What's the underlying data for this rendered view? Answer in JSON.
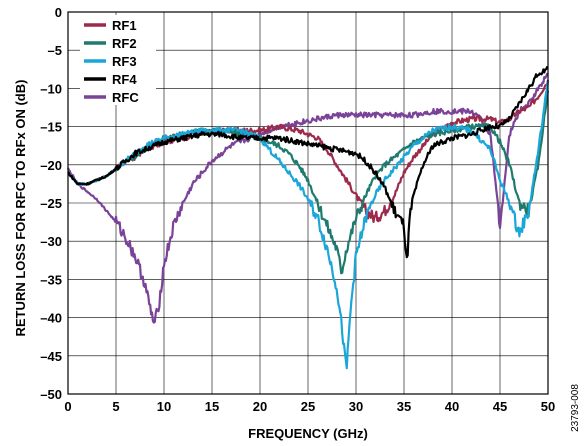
{
  "figure_code": "23793-008",
  "chart_data": {
    "type": "line",
    "xlabel": "FREQUENCY (GHz)",
    "ylabel": "RETURN LOSS FOR RFC TO RFx ON (dB)",
    "xlim": [
      0,
      50
    ],
    "ylim": [
      -50,
      0
    ],
    "xticks": [
      0,
      5,
      10,
      15,
      20,
      25,
      30,
      35,
      40,
      45,
      50
    ],
    "yticks": [
      0,
      -5,
      -10,
      -15,
      -20,
      -25,
      -30,
      -35,
      -40,
      -45,
      -50
    ],
    "tick_labels_x": [
      "0",
      "5",
      "10",
      "15",
      "20",
      "25",
      "30",
      "35",
      "40",
      "45",
      "50"
    ],
    "tick_labels_y": [
      "0",
      "–5",
      "–10",
      "–15",
      "–20",
      "–25",
      "–30",
      "–35",
      "–40",
      "–45",
      "–50"
    ],
    "grid": true,
    "legend_position": "top-left",
    "series": [
      {
        "name": "RF1",
        "color": "#9c2a4b",
        "x": [
          0,
          1,
          2,
          3,
          4,
          5,
          6,
          7,
          8,
          10,
          12,
          14,
          16,
          18,
          20,
          22,
          24,
          26,
          27,
          28,
          29,
          30,
          31,
          32,
          33,
          34,
          35,
          36,
          38,
          40,
          42,
          44,
          45,
          46,
          47,
          48,
          49,
          50
        ],
        "y": [
          -21,
          -22.5,
          -22.5,
          -22,
          -21.5,
          -20.5,
          -19.5,
          -19,
          -18,
          -17,
          -16.5,
          -16,
          -15.5,
          -15.5,
          -15.5,
          -15,
          -15.5,
          -16.5,
          -18,
          -20,
          -22,
          -24,
          -26,
          -27,
          -26,
          -24,
          -21,
          -19,
          -16,
          -14.5,
          -14,
          -14,
          -14.5,
          -14,
          -13,
          -12.5,
          -11,
          -9
        ]
      },
      {
        "name": "RF2",
        "color": "#1f7a6e",
        "x": [
          0,
          1,
          2,
          3,
          4,
          5,
          6,
          7,
          8,
          10,
          12,
          14,
          16,
          18,
          20,
          22,
          23,
          24,
          25,
          26,
          27,
          28,
          28.5,
          29,
          30,
          31,
          32,
          33,
          34,
          35,
          36,
          38,
          40,
          42,
          44,
          45,
          46,
          47,
          48,
          49,
          50
        ],
        "y": [
          -21,
          -22.5,
          -22.5,
          -22,
          -21.5,
          -20.5,
          -19.5,
          -19,
          -18,
          -16.5,
          -16,
          -15.5,
          -15.5,
          -16,
          -16.5,
          -17.5,
          -18.5,
          -20,
          -22,
          -25,
          -28,
          -31,
          -34,
          -31,
          -27,
          -24,
          -21.5,
          -20,
          -19,
          -18,
          -17,
          -16,
          -15.5,
          -15,
          -15,
          -17,
          -20,
          -25,
          -26,
          -20,
          -10
        ]
      },
      {
        "name": "RF3",
        "color": "#1ba6d9",
        "x": [
          0,
          1,
          2,
          3,
          4,
          5,
          6,
          7,
          8,
          10,
          12,
          14,
          16,
          18,
          20,
          21,
          22,
          23,
          24,
          25,
          26,
          27,
          28,
          28.5,
          29,
          29.5,
          30,
          31,
          32,
          33,
          34,
          35,
          36,
          37,
          38,
          40,
          42,
          44,
          45,
          46,
          47,
          48,
          49,
          50
        ],
        "y": [
          -21,
          -22.5,
          -22.5,
          -22,
          -21.5,
          -20.5,
          -19.5,
          -18.5,
          -17.5,
          -16.5,
          -16,
          -15.5,
          -15.5,
          -15.5,
          -16.5,
          -18,
          -19.5,
          -21,
          -22.5,
          -24.5,
          -27,
          -31,
          -36,
          -41,
          -47,
          -38,
          -32,
          -27,
          -24,
          -22,
          -20.5,
          -19,
          -17.5,
          -16.5,
          -15.5,
          -15,
          -15.5,
          -18,
          -22,
          -25,
          -29,
          -26,
          -18,
          -9
        ]
      },
      {
        "name": "RF4",
        "color": "#000000",
        "x": [
          0,
          1,
          2,
          3,
          4,
          5,
          6,
          7,
          8,
          10,
          12,
          14,
          16,
          18,
          20,
          22,
          24,
          26,
          28,
          30,
          31,
          32,
          33,
          34,
          35,
          35.3,
          35.6,
          36,
          37,
          38,
          40,
          42,
          43,
          44,
          45,
          46,
          47,
          48,
          49,
          50
        ],
        "y": [
          -21,
          -22.5,
          -22.5,
          -22,
          -21.5,
          -20.5,
          -19.5,
          -18.5,
          -18,
          -17,
          -16.5,
          -16,
          -16,
          -16.5,
          -16.5,
          -16.5,
          -17,
          -17.5,
          -18,
          -18.5,
          -19.5,
          -21,
          -23,
          -26,
          -28,
          -33,
          -27,
          -24,
          -20,
          -17.5,
          -16.5,
          -16,
          -15.5,
          -15,
          -15,
          -14,
          -12,
          -10,
          -8,
          -7.5
        ]
      },
      {
        "name": "RFC",
        "color": "#7a4398",
        "x": [
          0,
          1,
          2,
          3,
          4,
          5,
          6,
          7,
          8,
          8.5,
          9,
          9.5,
          10,
          11,
          12,
          13,
          14,
          15,
          16,
          17,
          18,
          19,
          20,
          22,
          24,
          26,
          28,
          30,
          32,
          34,
          36,
          38,
          40,
          42,
          43,
          44,
          44.5,
          45,
          45.5,
          46,
          47,
          48,
          49,
          50
        ],
        "y": [
          -20.5,
          -22.5,
          -23.5,
          -24.5,
          -26,
          -27.5,
          -29.5,
          -32,
          -35.5,
          -38.5,
          -41,
          -38,
          -33,
          -28,
          -25,
          -22.5,
          -21,
          -19.5,
          -18.5,
          -17.5,
          -17,
          -16.5,
          -16,
          -15,
          -14.5,
          -14,
          -13.5,
          -13.5,
          -13.5,
          -13.5,
          -13.5,
          -13,
          -13,
          -13,
          -14,
          -16,
          -22,
          -28,
          -22,
          -16,
          -13,
          -12,
          -10,
          -8
        ]
      }
    ]
  }
}
